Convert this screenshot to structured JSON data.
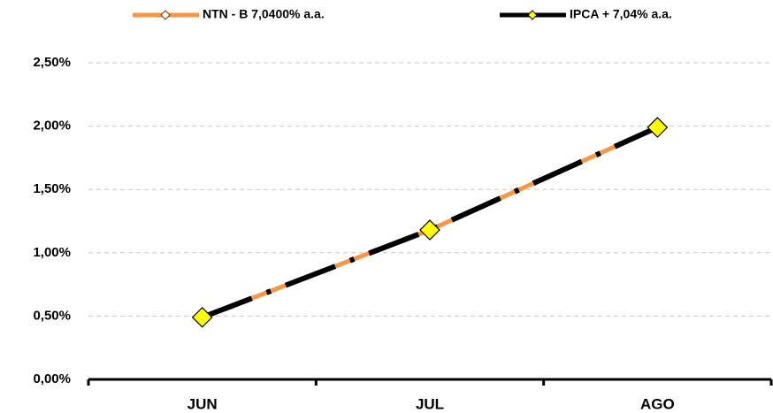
{
  "chart_data": {
    "type": "line",
    "categories": [
      "JUN",
      "JUL",
      "AGO"
    ],
    "series": [
      {
        "name": "NTN - B 7,0400% a.a.",
        "color": "#f79646",
        "marker_color": "#ffffff",
        "values": [
          0.49,
          1.18,
          1.99
        ]
      },
      {
        "name": "IPCA + 7,04% a.a.",
        "color": "#000000",
        "marker_color": "#ffff00",
        "dashed": true,
        "values": [
          0.49,
          1.18,
          1.99
        ]
      }
    ],
    "ylim": [
      0,
      2.5
    ],
    "yticks": [
      {
        "value": 0,
        "label": "0,00%"
      },
      {
        "value": 0.5,
        "label": "0,50%"
      },
      {
        "value": 1,
        "label": "1,00%"
      },
      {
        "value": 1.5,
        "label": "1,50%"
      },
      {
        "value": 2,
        "label": "2,00%"
      },
      {
        "value": 2.5,
        "label": "2,50%"
      }
    ],
    "grid": true,
    "legend": "top"
  }
}
